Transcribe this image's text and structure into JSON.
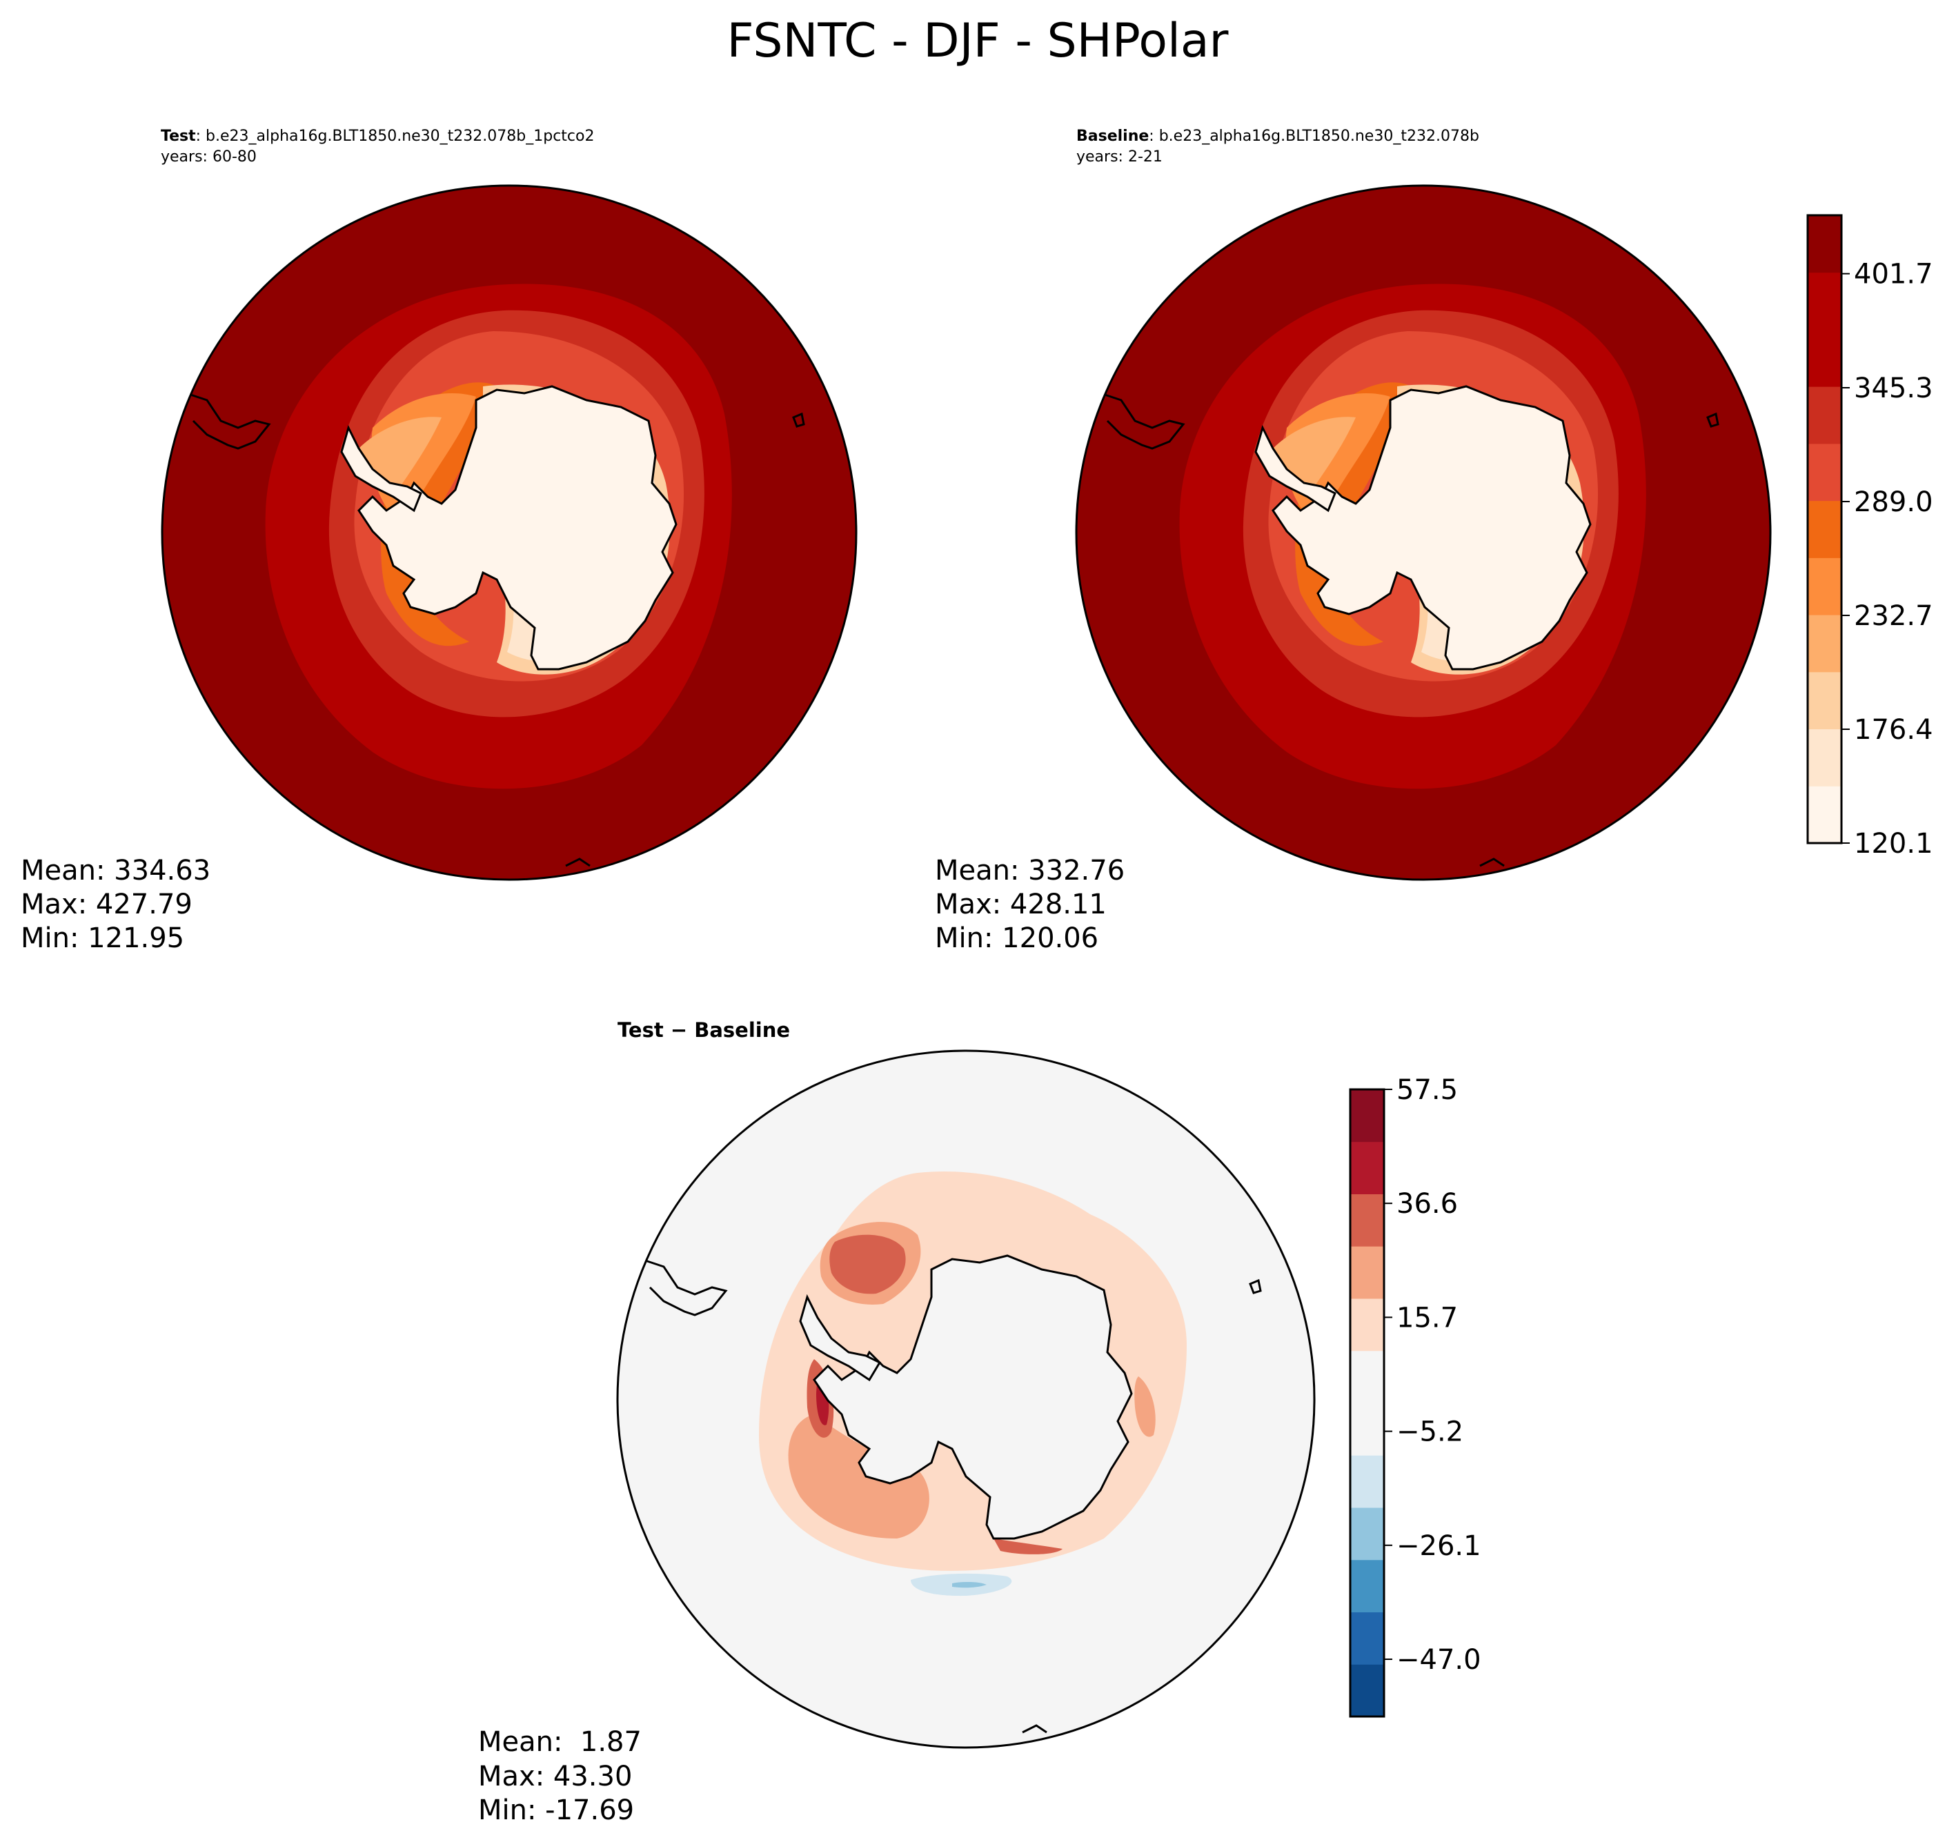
{
  "figure": {
    "title": "FSNTC - DJF - SHPolar"
  },
  "colors": {
    "test_levels": [
      "#fff5eb",
      "#fee6ce",
      "#fdd0a2",
      "#fdae6b",
      "#fd8d3c",
      "#f16913",
      "#e34a33",
      "#cb2e1f",
      "#b30000",
      "#8f0000"
    ],
    "diff_levels": [
      "#0d4a8a",
      "#2166ac",
      "#4393c3",
      "#92c5de",
      "#d1e5f0",
      "#f5f5f5",
      "#fddbc7",
      "#f4a582",
      "#d6604d",
      "#b2182b",
      "#8b0d22"
    ],
    "coast": "#000000"
  },
  "chart_data": [
    {
      "type": "heatmap",
      "projection": "south-polar-stereographic",
      "panel": "test",
      "title_bold": "Test",
      "title_rest": ": b.e23_alpha16g.BLT1850.ne30_t232.078b_1pctco2",
      "years": "years: 60-80",
      "stats": {
        "mean": "Mean: 334.63",
        "max": "Max: 427.79",
        "min": "Min: 121.95"
      },
      "mean": 334.63,
      "max": 427.79,
      "min": 121.95,
      "contour_range": [
        120.1,
        430.6
      ]
    },
    {
      "type": "heatmap",
      "projection": "south-polar-stereographic",
      "panel": "baseline",
      "title_bold": "Baseline",
      "title_rest": ": b.e23_alpha16g.BLT1850.ne30_t232.078b",
      "years": "years: 2-21",
      "stats": {
        "mean": "Mean: 332.76",
        "max": "Max: 428.11",
        "min": "Min: 120.06"
      },
      "mean": 332.76,
      "max": 428.11,
      "min": 120.06,
      "colorbar": {
        "ticks": [
          120.1,
          176.4,
          232.7,
          289.0,
          345.3,
          401.7
        ],
        "tick_labels": [
          "120.1",
          "176.4",
          "232.7",
          "289.0",
          "345.3",
          "401.7"
        ],
        "range": [
          120.1,
          430.6
        ],
        "levels": 11
      }
    },
    {
      "type": "heatmap",
      "projection": "south-polar-stereographic",
      "panel": "difference",
      "title_bold": "Test − Baseline",
      "stats": {
        "mean": "Mean:  1.87",
        "max": "Max: 43.30",
        "min": "Min: -17.69"
      },
      "mean": 1.87,
      "max": 43.3,
      "min": -17.69,
      "colorbar": {
        "ticks": [
          -47.0,
          -26.1,
          -5.2,
          15.7,
          36.6,
          57.5
        ],
        "tick_labels": [
          "−47.0",
          "−26.1",
          "−5.2",
          "15.7",
          "36.6",
          "57.5"
        ],
        "range": [
          -57.5,
          57.5
        ],
        "levels": 12
      }
    }
  ]
}
